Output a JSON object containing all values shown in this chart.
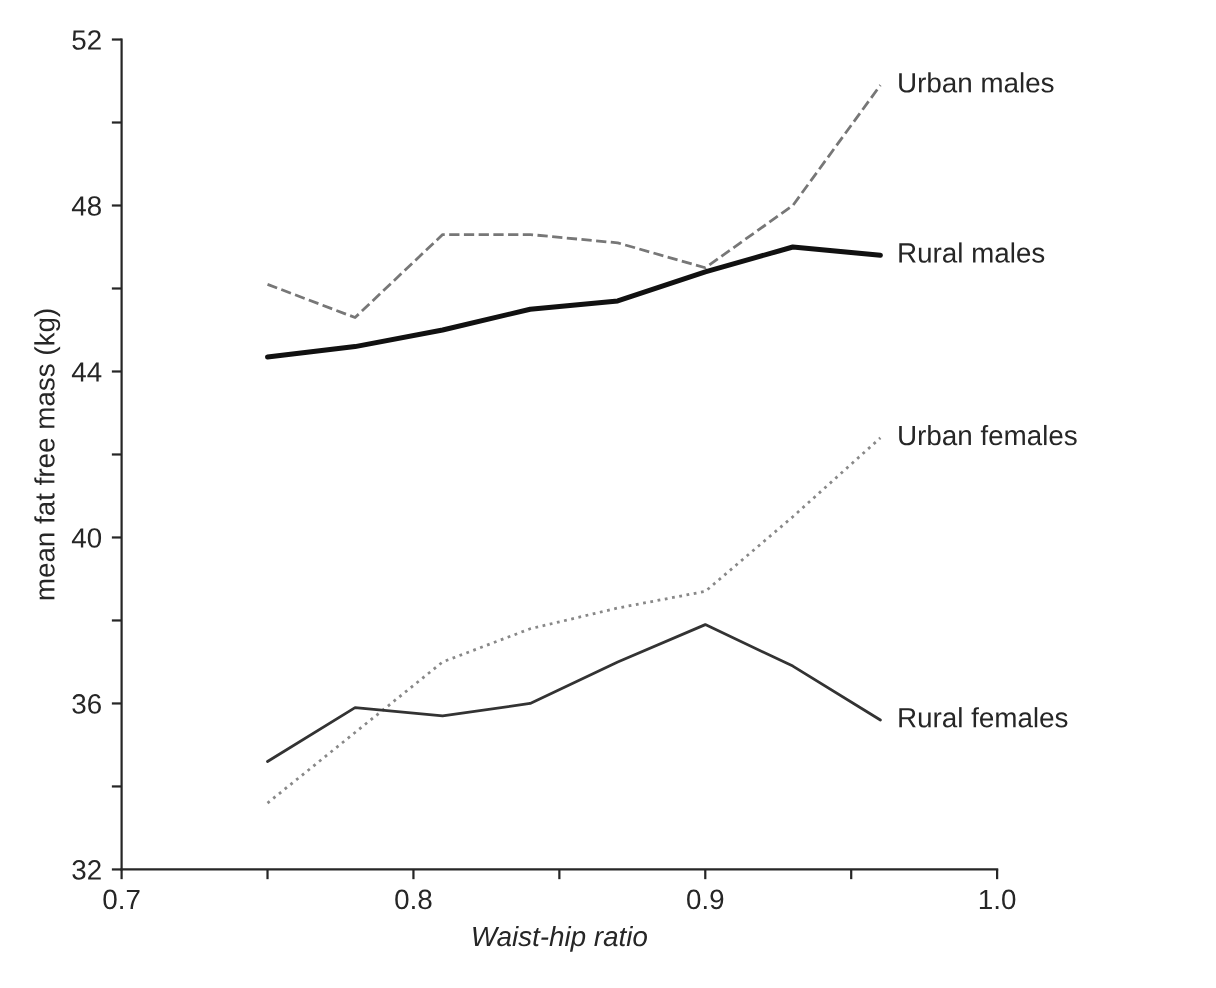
{
  "chart_data": {
    "type": "line",
    "xlabel": "Waist-hip ratio",
    "ylabel": "mean fat free mass (kg)",
    "x": [
      0.75,
      0.78,
      0.81,
      0.84,
      0.87,
      0.9,
      0.93,
      0.96
    ],
    "series": [
      {
        "name": "Urban males",
        "color": "#777777",
        "line_style": "dashed",
        "values": [
          46.1,
          45.3,
          47.3,
          47.3,
          47.1,
          46.5,
          48.0,
          50.9
        ]
      },
      {
        "name": "Rural males",
        "color": "#111111",
        "line_style": "solid",
        "values": [
          44.35,
          44.6,
          45.0,
          45.5,
          45.7,
          46.4,
          47.0,
          46.8
        ]
      },
      {
        "name": "Urban females",
        "color": "#888888",
        "line_style": "dotted",
        "values": [
          33.6,
          35.3,
          37.0,
          37.8,
          38.3,
          38.7,
          40.5,
          42.4
        ]
      },
      {
        "name": "Rural females",
        "color": "#333333",
        "line_style": "solid",
        "values": [
          34.6,
          35.9,
          35.7,
          36.0,
          37.0,
          37.9,
          36.9,
          35.6
        ]
      }
    ],
    "xlim": [
      0.7,
      1.0
    ],
    "xticks": [
      0.7,
      {
        "value": 0.75,
        "label": null
      },
      0.8,
      {
        "value": 0.85,
        "label": null
      },
      0.9,
      {
        "value": 0.95,
        "label": null
      },
      {
        "value": 1.0,
        "label": "1.0"
      }
    ],
    "ylim": [
      32,
      52
    ],
    "yticks": [
      32,
      {
        "value": 34,
        "label": null
      },
      36,
      {
        "value": 38,
        "label": null
      },
      40,
      {
        "value": 42,
        "label": null
      },
      44,
      {
        "value": 46,
        "label": null
      },
      48,
      {
        "value": 50,
        "label": null
      },
      52
    ],
    "grid": false,
    "legend": false,
    "marker": "none"
  }
}
